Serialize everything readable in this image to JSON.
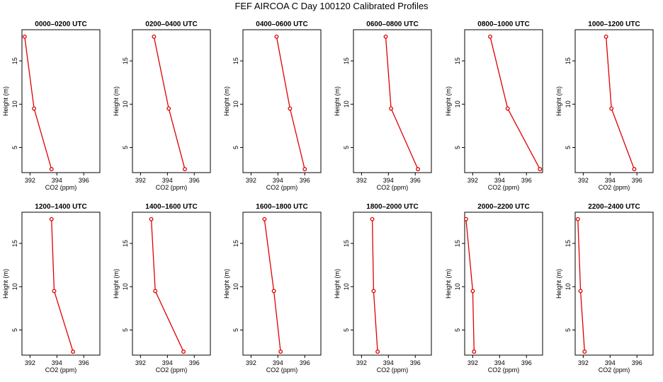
{
  "figure": {
    "title": "FEF AIRCOA C  Day 100120  Calibrated Profiles"
  },
  "colors": {
    "series": "#dd0000",
    "axis": "#000000",
    "background": "#ffffff"
  },
  "chart_data": [
    {
      "type": "line",
      "title": "0000–0200 UTC",
      "xlabel": "CO2 (ppm)",
      "ylabel": "Height (m)",
      "xlim": [
        391.4,
        397.2
      ],
      "ylim": [
        2.1,
        18.6
      ],
      "xticks": [
        392,
        394,
        396
      ],
      "yticks": [
        5,
        10,
        15
      ],
      "x": [
        391.6,
        392.3,
        393.6
      ],
      "y": [
        17.8,
        9.5,
        2.5
      ]
    },
    {
      "type": "line",
      "title": "0200–0400 UTC",
      "xlabel": "CO2 (ppm)",
      "ylabel": "Height (m)",
      "xlim": [
        391.4,
        397.2
      ],
      "ylim": [
        2.1,
        18.6
      ],
      "xticks": [
        392,
        394,
        396
      ],
      "yticks": [
        5,
        10,
        15
      ],
      "x": [
        393.0,
        394.1,
        395.3
      ],
      "y": [
        17.8,
        9.5,
        2.5
      ]
    },
    {
      "type": "line",
      "title": "0400–0600 UTC",
      "xlabel": "CO2 (ppm)",
      "ylabel": "Height (m)",
      "xlim": [
        391.4,
        397.2
      ],
      "ylim": [
        2.1,
        18.6
      ],
      "xticks": [
        392,
        394,
        396
      ],
      "yticks": [
        5,
        10,
        15
      ],
      "x": [
        393.9,
        394.9,
        396.0
      ],
      "y": [
        17.8,
        9.5,
        2.5
      ]
    },
    {
      "type": "line",
      "title": "0600–0800 UTC",
      "xlabel": "CO2 (ppm)",
      "ylabel": "Height (m)",
      "xlim": [
        391.4,
        397.2
      ],
      "ylim": [
        2.1,
        18.6
      ],
      "xticks": [
        392,
        394,
        396
      ],
      "yticks": [
        5,
        10,
        15
      ],
      "x": [
        393.8,
        394.2,
        396.2
      ],
      "y": [
        17.8,
        9.5,
        2.5
      ]
    },
    {
      "type": "line",
      "title": "0800–1000 UTC",
      "xlabel": "CO2 (ppm)",
      "ylabel": "Height (m)",
      "xlim": [
        391.4,
        397.2
      ],
      "ylim": [
        2.1,
        18.6
      ],
      "xticks": [
        392,
        394,
        396
      ],
      "yticks": [
        5,
        10,
        15
      ],
      "x": [
        393.3,
        394.6,
        397.0
      ],
      "y": [
        17.8,
        9.5,
        2.5
      ]
    },
    {
      "type": "line",
      "title": "1000–1200 UTC",
      "xlabel": "CO2 (ppm)",
      "ylabel": "Height (m)",
      "xlim": [
        391.4,
        397.2
      ],
      "ylim": [
        2.1,
        18.6
      ],
      "xticks": [
        392,
        394,
        396
      ],
      "yticks": [
        5,
        10,
        15
      ],
      "x": [
        393.7,
        394.1,
        395.8
      ],
      "y": [
        17.8,
        9.5,
        2.5
      ]
    },
    {
      "type": "line",
      "title": "1200–1400 UTC",
      "xlabel": "CO2 (ppm)",
      "ylabel": "Height (m)",
      "xlim": [
        391.4,
        397.2
      ],
      "ylim": [
        2.1,
        18.6
      ],
      "xticks": [
        392,
        394,
        396
      ],
      "yticks": [
        5,
        10,
        15
      ],
      "x": [
        393.6,
        393.8,
        395.2
      ],
      "y": [
        17.8,
        9.5,
        2.5
      ]
    },
    {
      "type": "line",
      "title": "1400–1600 UTC",
      "xlabel": "CO2 (ppm)",
      "ylabel": "Height (m)",
      "xlim": [
        391.4,
        397.2
      ],
      "ylim": [
        2.1,
        18.6
      ],
      "xticks": [
        392,
        394,
        396
      ],
      "yticks": [
        5,
        10,
        15
      ],
      "x": [
        392.8,
        393.1,
        395.2
      ],
      "y": [
        17.8,
        9.5,
        2.5
      ]
    },
    {
      "type": "line",
      "title": "1600–1800 UTC",
      "xlabel": "CO2 (ppm)",
      "ylabel": "Height (m)",
      "xlim": [
        391.4,
        397.2
      ],
      "ylim": [
        2.1,
        18.6
      ],
      "xticks": [
        392,
        394,
        396
      ],
      "yticks": [
        5,
        10,
        15
      ],
      "x": [
        393.0,
        393.7,
        394.2
      ],
      "y": [
        17.8,
        9.5,
        2.5
      ]
    },
    {
      "type": "line",
      "title": "1800–2000 UTC",
      "xlabel": "CO2 (ppm)",
      "ylabel": "Height (m)",
      "xlim": [
        391.4,
        397.2
      ],
      "ylim": [
        2.1,
        18.6
      ],
      "xticks": [
        392,
        394,
        396
      ],
      "yticks": [
        5,
        10,
        15
      ],
      "x": [
        392.8,
        392.9,
        393.2
      ],
      "y": [
        17.8,
        9.5,
        2.5
      ]
    },
    {
      "type": "line",
      "title": "2000–2200 UTC",
      "xlabel": "CO2 (ppm)",
      "ylabel": "Height (m)",
      "xlim": [
        391.4,
        397.2
      ],
      "ylim": [
        2.1,
        18.6
      ],
      "xticks": [
        392,
        394,
        396
      ],
      "yticks": [
        5,
        10,
        15
      ],
      "x": [
        391.5,
        392.0,
        392.1
      ],
      "y": [
        17.8,
        9.5,
        2.5
      ]
    },
    {
      "type": "line",
      "title": "2200–2400 UTC",
      "xlabel": "CO2 (ppm)",
      "ylabel": "Height (m)",
      "xlim": [
        391.4,
        397.2
      ],
      "ylim": [
        2.1,
        18.6
      ],
      "xticks": [
        392,
        394,
        396
      ],
      "yticks": [
        5,
        10,
        15
      ],
      "x": [
        391.6,
        391.8,
        392.1
      ],
      "y": [
        17.8,
        9.5,
        2.5
      ]
    }
  ]
}
